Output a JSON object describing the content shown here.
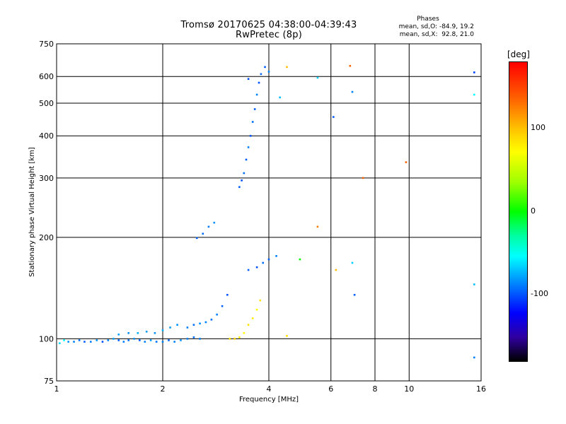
{
  "header": {
    "title_line1": "Tromsø 20170625 04:38:00-04:39:43",
    "title_line2": "RwPretec (8p)"
  },
  "stats": {
    "heading": "Phases",
    "line_o": "mean, sd,O: -84.9, 19.2",
    "line_x": "mean, sd,X:  92.8, 21.0"
  },
  "colorbar": {
    "unit": "[deg]",
    "ticks": [
      {
        "label": "100",
        "value": 100
      },
      {
        "label": "0",
        "value": 0
      },
      {
        "label": "-100",
        "value": -100
      }
    ],
    "range": [
      -180,
      180
    ]
  },
  "chart_data": {
    "type": "scatter",
    "xlabel": "Frequency [MHz]",
    "ylabel": "Stationary phase Virtual Height [km]",
    "xscale": "log",
    "xlim": [
      1,
      16
    ],
    "ylim": [
      75,
      750
    ],
    "xticks": [
      {
        "label": "1",
        "value": 1
      },
      {
        "label": "2",
        "value": 2
      },
      {
        "label": "4",
        "value": 4
      },
      {
        "label": "6",
        "value": 6
      },
      {
        "label": "8",
        "value": 8
      },
      {
        "label": "10",
        "value": 10
      },
      {
        "label": "16",
        "value": 16
      }
    ],
    "yticks": [
      {
        "label": "750",
        "value": 750
      },
      {
        "label": "600",
        "value": 600
      },
      {
        "label": "500",
        "value": 500
      },
      {
        "label": "400",
        "value": 400
      },
      {
        "label": "300",
        "value": 300
      },
      {
        "label": "200",
        "value": 200
      },
      {
        "label": "100",
        "value": 100
      },
      {
        "label": "75",
        "value": 75
      }
    ],
    "grid": true,
    "points": [
      {
        "x": 1.02,
        "y": 97,
        "phase": -70
      },
      {
        "x": 1.05,
        "y": 99,
        "phase": -60
      },
      {
        "x": 1.08,
        "y": 98,
        "phase": -95
      },
      {
        "x": 1.12,
        "y": 98,
        "phase": -100
      },
      {
        "x": 1.16,
        "y": 99,
        "phase": -105
      },
      {
        "x": 1.2,
        "y": 98,
        "phase": -110
      },
      {
        "x": 1.25,
        "y": 98,
        "phase": -100
      },
      {
        "x": 1.3,
        "y": 99,
        "phase": -95
      },
      {
        "x": 1.35,
        "y": 98,
        "phase": -115
      },
      {
        "x": 1.4,
        "y": 99,
        "phase": -100
      },
      {
        "x": 1.45,
        "y": 100,
        "phase": -90
      },
      {
        "x": 1.5,
        "y": 99,
        "phase": -110
      },
      {
        "x": 1.55,
        "y": 98,
        "phase": -100
      },
      {
        "x": 1.6,
        "y": 99,
        "phase": -105
      },
      {
        "x": 1.66,
        "y": 100,
        "phase": -95
      },
      {
        "x": 1.72,
        "y": 99,
        "phase": -110
      },
      {
        "x": 1.78,
        "y": 98,
        "phase": -100
      },
      {
        "x": 1.85,
        "y": 99,
        "phase": -90
      },
      {
        "x": 1.92,
        "y": 98,
        "phase": -105
      },
      {
        "x": 2.0,
        "y": 98,
        "phase": -100
      },
      {
        "x": 2.08,
        "y": 99,
        "phase": -110
      },
      {
        "x": 2.16,
        "y": 98,
        "phase": -100
      },
      {
        "x": 2.25,
        "y": 99,
        "phase": -95
      },
      {
        "x": 2.35,
        "y": 100,
        "phase": -100
      },
      {
        "x": 2.45,
        "y": 101,
        "phase": -105
      },
      {
        "x": 2.55,
        "y": 100,
        "phase": -100
      },
      {
        "x": 1.5,
        "y": 103,
        "phase": -90
      },
      {
        "x": 1.6,
        "y": 104,
        "phase": -95
      },
      {
        "x": 1.7,
        "y": 104,
        "phase": -85
      },
      {
        "x": 1.8,
        "y": 105,
        "phase": -90
      },
      {
        "x": 1.9,
        "y": 104,
        "phase": -95
      },
      {
        "x": 2.0,
        "y": 106,
        "phase": -85
      },
      {
        "x": 2.1,
        "y": 108,
        "phase": -90
      },
      {
        "x": 2.2,
        "y": 110,
        "phase": -95
      },
      {
        "x": 2.35,
        "y": 108,
        "phase": -100
      },
      {
        "x": 2.45,
        "y": 110,
        "phase": -105
      },
      {
        "x": 2.55,
        "y": 111,
        "phase": -95
      },
      {
        "x": 2.65,
        "y": 112,
        "phase": -100
      },
      {
        "x": 2.75,
        "y": 114,
        "phase": -105
      },
      {
        "x": 2.85,
        "y": 118,
        "phase": -100
      },
      {
        "x": 2.95,
        "y": 125,
        "phase": -110
      },
      {
        "x": 3.05,
        "y": 135,
        "phase": -115
      },
      {
        "x": 2.5,
        "y": 199,
        "phase": -110
      },
      {
        "x": 2.6,
        "y": 205,
        "phase": -105
      },
      {
        "x": 2.7,
        "y": 215,
        "phase": -100
      },
      {
        "x": 2.8,
        "y": 221,
        "phase": -95
      },
      {
        "x": 3.1,
        "y": 100,
        "phase": 110
      },
      {
        "x": 3.2,
        "y": 100,
        "phase": 115
      },
      {
        "x": 3.3,
        "y": 101,
        "phase": 105
      },
      {
        "x": 3.4,
        "y": 104,
        "phase": 100
      },
      {
        "x": 3.5,
        "y": 110,
        "phase": 110
      },
      {
        "x": 3.6,
        "y": 115,
        "phase": 105
      },
      {
        "x": 3.7,
        "y": 122,
        "phase": 100
      },
      {
        "x": 3.78,
        "y": 130,
        "phase": 110
      },
      {
        "x": 3.5,
        "y": 160,
        "phase": -110
      },
      {
        "x": 3.7,
        "y": 163,
        "phase": -115
      },
      {
        "x": 3.85,
        "y": 168,
        "phase": -105
      },
      {
        "x": 4.0,
        "y": 172,
        "phase": -110
      },
      {
        "x": 4.2,
        "y": 176,
        "phase": -100
      },
      {
        "x": 3.3,
        "y": 282,
        "phase": -110
      },
      {
        "x": 3.35,
        "y": 295,
        "phase": -115
      },
      {
        "x": 3.4,
        "y": 310,
        "phase": -105
      },
      {
        "x": 3.45,
        "y": 340,
        "phase": -110
      },
      {
        "x": 3.5,
        "y": 370,
        "phase": -100
      },
      {
        "x": 3.55,
        "y": 400,
        "phase": -115
      },
      {
        "x": 3.6,
        "y": 440,
        "phase": -105
      },
      {
        "x": 3.65,
        "y": 480,
        "phase": -110
      },
      {
        "x": 3.7,
        "y": 530,
        "phase": -100
      },
      {
        "x": 3.75,
        "y": 575,
        "phase": -115
      },
      {
        "x": 3.8,
        "y": 610,
        "phase": -105
      },
      {
        "x": 3.9,
        "y": 640,
        "phase": -110
      },
      {
        "x": 4.0,
        "y": 620,
        "phase": -100
      },
      {
        "x": 3.5,
        "y": 590,
        "phase": -115
      },
      {
        "x": 4.5,
        "y": 640,
        "phase": 120
      },
      {
        "x": 4.3,
        "y": 520,
        "phase": -80
      },
      {
        "x": 5.5,
        "y": 595,
        "phase": -75
      },
      {
        "x": 6.1,
        "y": 455,
        "phase": -110
      },
      {
        "x": 6.8,
        "y": 645,
        "phase": 150
      },
      {
        "x": 6.9,
        "y": 540,
        "phase": -100
      },
      {
        "x": 7.4,
        "y": 300,
        "phase": 150
      },
      {
        "x": 9.8,
        "y": 334,
        "phase": 150
      },
      {
        "x": 15.3,
        "y": 617,
        "phase": -120
      },
      {
        "x": 15.3,
        "y": 530,
        "phase": -60
      },
      {
        "x": 15.3,
        "y": 145,
        "phase": -80
      },
      {
        "x": 15.3,
        "y": 88,
        "phase": -100
      },
      {
        "x": 5.5,
        "y": 215,
        "phase": 140
      },
      {
        "x": 6.2,
        "y": 160,
        "phase": 120
      },
      {
        "x": 6.9,
        "y": 168,
        "phase": -75
      },
      {
        "x": 7.0,
        "y": 135,
        "phase": -110
      },
      {
        "x": 4.9,
        "y": 172,
        "phase": 20
      },
      {
        "x": 4.5,
        "y": 102,
        "phase": 110
      }
    ]
  }
}
